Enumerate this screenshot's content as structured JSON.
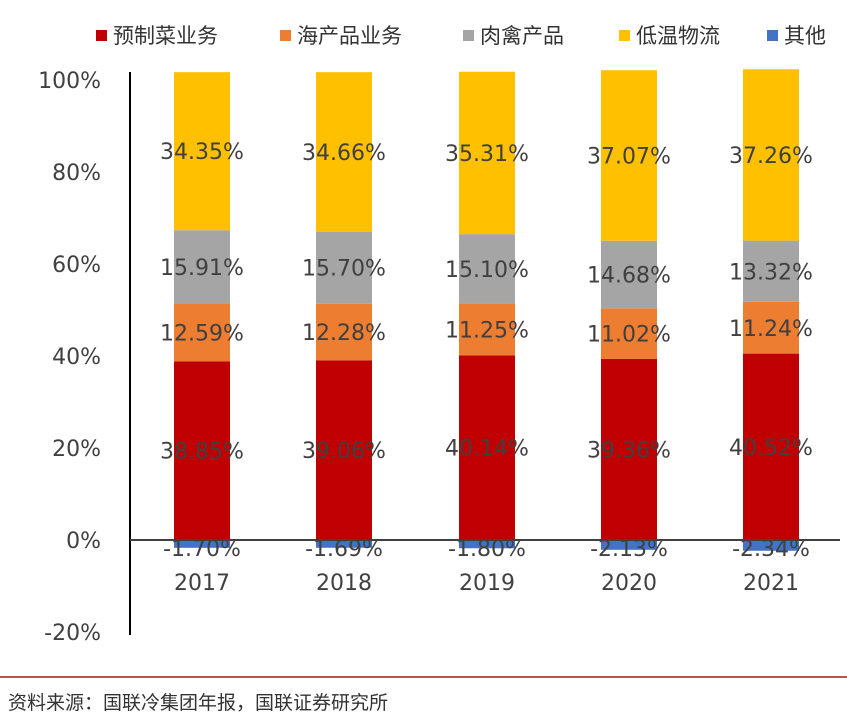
{
  "chart_data": {
    "type": "bar",
    "stacked": true,
    "categories": [
      "2017",
      "2018",
      "2019",
      "2020",
      "2021"
    ],
    "series": [
      {
        "name": "预制菜业务",
        "color": "#c00000",
        "values": [
          38.85,
          39.06,
          40.14,
          39.36,
          40.52
        ]
      },
      {
        "name": "海产品业务",
        "color": "#ed7d31",
        "values": [
          12.59,
          12.28,
          11.25,
          11.02,
          11.24
        ]
      },
      {
        "name": "肉禽产品",
        "color": "#a5a5a5",
        "values": [
          15.91,
          15.7,
          15.1,
          14.68,
          13.32
        ]
      },
      {
        "name": "低温物流",
        "color": "#ffc000",
        "values": [
          34.35,
          34.66,
          35.31,
          37.07,
          37.26
        ]
      },
      {
        "name": "其他",
        "color": "#4472c4",
        "values": [
          -1.7,
          -1.69,
          -1.8,
          -2.13,
          -2.34
        ]
      }
    ],
    "data_labels": {
      "预制菜业务": [
        "38.85%",
        "39.06%",
        "40.14%",
        "39.36%",
        "40.52%"
      ],
      "海产品业务": [
        "12.59%",
        "12.28%",
        "11.25%",
        "11.02%",
        "11.24%"
      ],
      "肉禽产品": [
        "15.91%",
        "15.70%",
        "15.10%",
        "14.68%",
        "13.32%"
      ],
      "低温物流": [
        "34.35%",
        "34.66%",
        "35.31%",
        "37.07%",
        "37.26%"
      ],
      "其他": [
        "-1.70%",
        "-1.69%",
        "-1.80%",
        "-2.13%",
        "-2.34%"
      ]
    },
    "yticks": [
      100,
      80,
      60,
      40,
      20,
      0,
      -20
    ],
    "ytick_labels": [
      "100%",
      "80%",
      "60%",
      "40%",
      "20%",
      "0%",
      "-20%"
    ],
    "ylim": [
      -20,
      100
    ],
    "legend_position": "top",
    "title": "",
    "xlabel": "",
    "ylabel": ""
  },
  "source": "资料来源：国联冷集团年报，国联证券研究所"
}
